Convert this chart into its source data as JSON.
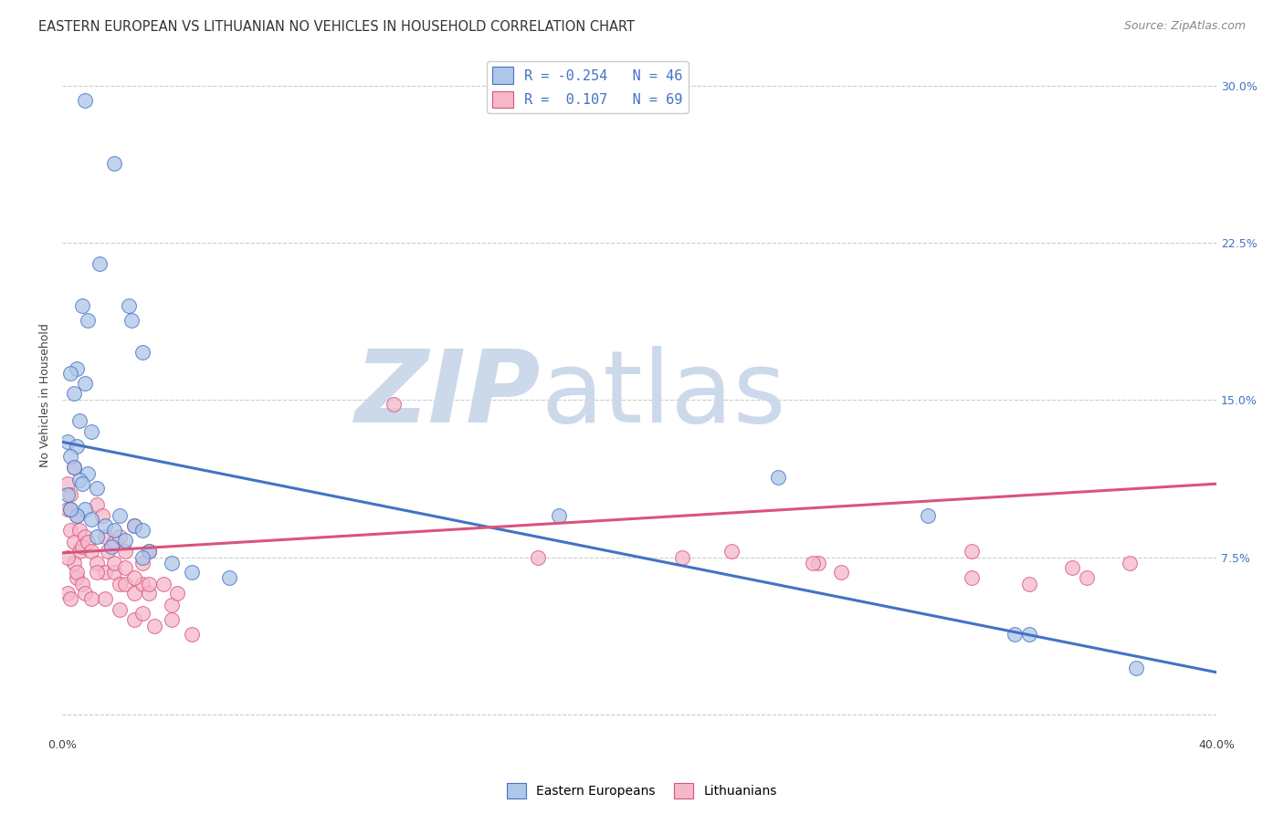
{
  "title": "EASTERN EUROPEAN VS LITHUANIAN NO VEHICLES IN HOUSEHOLD CORRELATION CHART",
  "source": "Source: ZipAtlas.com",
  "ylabel": "No Vehicles in Household",
  "xlim": [
    0.0,
    0.4
  ],
  "ylim": [
    -0.01,
    0.315
  ],
  "yticks": [
    0.0,
    0.075,
    0.15,
    0.225,
    0.3
  ],
  "ytick_labels": [
    "",
    "7.5%",
    "15.0%",
    "22.5%",
    "30.0%"
  ],
  "xticks": [
    0.0,
    0.1,
    0.2,
    0.3,
    0.4
  ],
  "xtick_labels": [
    "0.0%",
    "",
    "",
    "",
    "40.0%"
  ],
  "blue_R": -0.254,
  "blue_N": 46,
  "pink_R": 0.107,
  "pink_N": 69,
  "blue_color": "#aec6e8",
  "pink_color": "#f5b8cb",
  "blue_line_color": "#4472C4",
  "pink_line_color": "#d9547a",
  "watermark_zip": "ZIP",
  "watermark_atlas": "atlas",
  "watermark_color": "#ccd9ea",
  "blue_line_x0": 0.0,
  "blue_line_y0": 0.13,
  "blue_line_x1": 0.4,
  "blue_line_y1": 0.02,
  "pink_line_x0": 0.0,
  "pink_line_y0": 0.077,
  "pink_line_x1": 0.4,
  "pink_line_y1": 0.11,
  "blue_scatter": [
    [
      0.008,
      0.293
    ],
    [
      0.018,
      0.263
    ],
    [
      0.013,
      0.215
    ],
    [
      0.023,
      0.195
    ],
    [
      0.009,
      0.188
    ],
    [
      0.028,
      0.173
    ],
    [
      0.007,
      0.195
    ],
    [
      0.024,
      0.188
    ],
    [
      0.005,
      0.165
    ],
    [
      0.008,
      0.158
    ],
    [
      0.003,
      0.163
    ],
    [
      0.004,
      0.153
    ],
    [
      0.006,
      0.14
    ],
    [
      0.01,
      0.135
    ],
    [
      0.002,
      0.13
    ],
    [
      0.005,
      0.128
    ],
    [
      0.003,
      0.123
    ],
    [
      0.009,
      0.115
    ],
    [
      0.006,
      0.112
    ],
    [
      0.007,
      0.11
    ],
    [
      0.004,
      0.118
    ],
    [
      0.012,
      0.108
    ],
    [
      0.002,
      0.105
    ],
    [
      0.008,
      0.098
    ],
    [
      0.005,
      0.095
    ],
    [
      0.01,
      0.093
    ],
    [
      0.015,
      0.09
    ],
    [
      0.018,
      0.088
    ],
    [
      0.003,
      0.098
    ],
    [
      0.02,
      0.095
    ],
    [
      0.025,
      0.09
    ],
    [
      0.028,
      0.088
    ],
    [
      0.012,
      0.085
    ],
    [
      0.022,
      0.083
    ],
    [
      0.017,
      0.08
    ],
    [
      0.03,
      0.078
    ],
    [
      0.028,
      0.075
    ],
    [
      0.038,
      0.072
    ],
    [
      0.045,
      0.068
    ],
    [
      0.058,
      0.065
    ],
    [
      0.172,
      0.095
    ],
    [
      0.248,
      0.113
    ],
    [
      0.3,
      0.095
    ],
    [
      0.335,
      0.038
    ],
    [
      0.372,
      0.022
    ],
    [
      0.33,
      0.038
    ]
  ],
  "pink_scatter": [
    [
      0.002,
      0.11
    ],
    [
      0.003,
      0.105
    ],
    [
      0.002,
      0.098
    ],
    [
      0.004,
      0.118
    ],
    [
      0.003,
      0.088
    ],
    [
      0.005,
      0.095
    ],
    [
      0.006,
      0.088
    ],
    [
      0.004,
      0.082
    ],
    [
      0.006,
      0.078
    ],
    [
      0.008,
      0.085
    ],
    [
      0.004,
      0.072
    ],
    [
      0.007,
      0.08
    ],
    [
      0.009,
      0.082
    ],
    [
      0.01,
      0.078
    ],
    [
      0.012,
      0.1
    ],
    [
      0.014,
      0.095
    ],
    [
      0.015,
      0.085
    ],
    [
      0.016,
      0.078
    ],
    [
      0.018,
      0.082
    ],
    [
      0.02,
      0.085
    ],
    [
      0.022,
      0.078
    ],
    [
      0.025,
      0.09
    ],
    [
      0.028,
      0.072
    ],
    [
      0.03,
      0.078
    ],
    [
      0.012,
      0.072
    ],
    [
      0.015,
      0.068
    ],
    [
      0.018,
      0.068
    ],
    [
      0.02,
      0.062
    ],
    [
      0.022,
      0.062
    ],
    [
      0.025,
      0.058
    ],
    [
      0.028,
      0.062
    ],
    [
      0.03,
      0.058
    ],
    [
      0.018,
      0.072
    ],
    [
      0.022,
      0.07
    ],
    [
      0.025,
      0.065
    ],
    [
      0.03,
      0.062
    ],
    [
      0.035,
      0.062
    ],
    [
      0.038,
      0.052
    ],
    [
      0.04,
      0.058
    ],
    [
      0.012,
      0.068
    ],
    [
      0.015,
      0.055
    ],
    [
      0.02,
      0.05
    ],
    [
      0.025,
      0.045
    ],
    [
      0.028,
      0.048
    ],
    [
      0.032,
      0.042
    ],
    [
      0.038,
      0.045
    ],
    [
      0.045,
      0.038
    ],
    [
      0.005,
      0.065
    ],
    [
      0.002,
      0.058
    ],
    [
      0.003,
      0.055
    ],
    [
      0.003,
      0.098
    ],
    [
      0.005,
      0.068
    ],
    [
      0.007,
      0.062
    ],
    [
      0.008,
      0.058
    ],
    [
      0.01,
      0.055
    ],
    [
      0.002,
      0.075
    ],
    [
      0.115,
      0.148
    ],
    [
      0.165,
      0.075
    ],
    [
      0.215,
      0.075
    ],
    [
      0.262,
      0.072
    ],
    [
      0.315,
      0.065
    ],
    [
      0.26,
      0.072
    ],
    [
      0.35,
      0.07
    ],
    [
      0.335,
      0.062
    ],
    [
      0.355,
      0.065
    ],
    [
      0.315,
      0.078
    ],
    [
      0.27,
      0.068
    ],
    [
      0.232,
      0.078
    ],
    [
      0.37,
      0.072
    ]
  ],
  "title_fontsize": 10.5,
  "source_fontsize": 9,
  "axis_label_fontsize": 9,
  "tick_fontsize": 9,
  "legend_fontsize": 11,
  "marker_size": 130
}
